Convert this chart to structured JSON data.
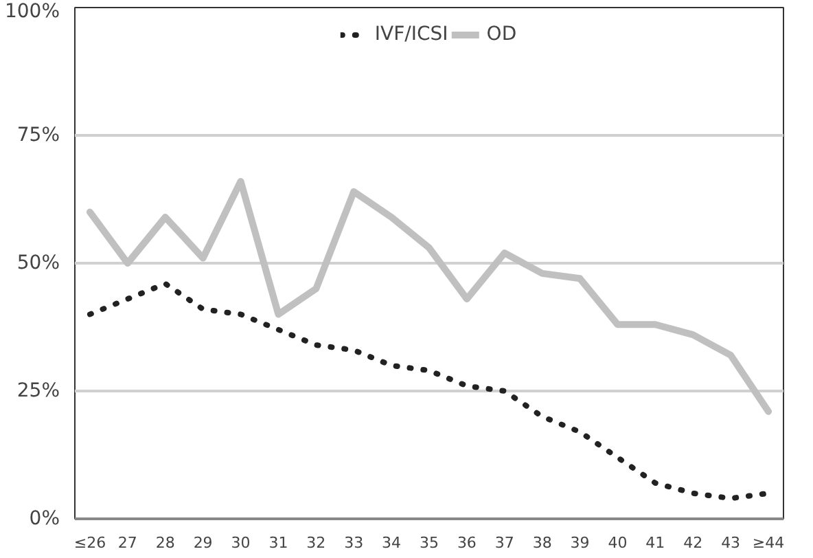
{
  "chart_data": {
    "type": "line",
    "categories": [
      "≤26",
      "27",
      "28",
      "29",
      "30",
      "31",
      "32",
      "33",
      "34",
      "35",
      "36",
      "37",
      "38",
      "39",
      "40",
      "41",
      "42",
      "43",
      "≥44"
    ],
    "series": [
      {
        "name": "IVF/ICSI",
        "color": "#222222",
        "line_style": "dotted",
        "values": [
          40,
          43,
          46,
          41,
          40,
          37,
          34,
          33,
          30,
          29,
          26,
          25,
          20,
          17,
          12,
          7,
          5,
          4,
          5
        ]
      },
      {
        "name": "OD",
        "color": "#c0c0c0",
        "line_style": "solid",
        "values": [
          60,
          50,
          59,
          51,
          66,
          40,
          45,
          64,
          59,
          53,
          43,
          52,
          48,
          47,
          38,
          38,
          36,
          32,
          21
        ]
      }
    ],
    "ylim": [
      0,
      100
    ],
    "yticks": [
      {
        "value": 0,
        "label": "0%"
      },
      {
        "value": 25,
        "label": "25%"
      },
      {
        "value": 50,
        "label": "50%"
      },
      {
        "value": 75,
        "label": "75%"
      },
      {
        "value": 100,
        "label": "100%"
      }
    ],
    "grid": "y",
    "legend": "top",
    "marker": "none"
  }
}
